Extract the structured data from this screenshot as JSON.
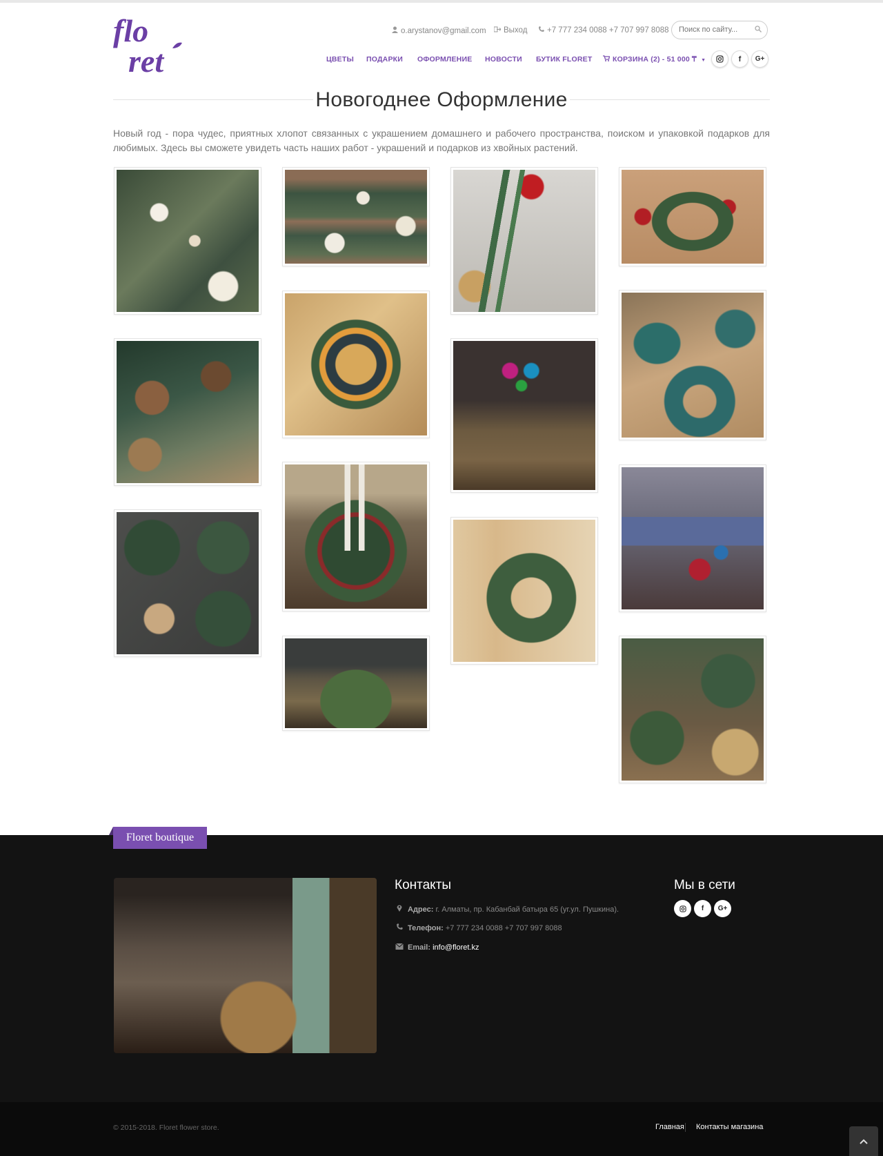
{
  "header": {
    "logo_text_1": "flo",
    "logo_text_2": "ret",
    "user_email": "o.arystanov@gmail.com",
    "logout_label": "Выход",
    "phones": "+7 777 234 0088 +7 707 997 8088",
    "search_placeholder": "Поиск по сайту..."
  },
  "nav": {
    "items": [
      "Цветы",
      "Подарки",
      "Оформление",
      "Новости",
      "Бутик Floret"
    ],
    "cart_label": "Корзина (2) - 51 000 ₸"
  },
  "social": [
    "instagram-icon",
    "facebook-icon",
    "google-plus-icon"
  ],
  "page": {
    "title": "Новогоднее Оформление",
    "intro": "Новый год - пора чудес, приятных хлопот связанных с украшением домашнего и рабочего пространства, поиском и упаковкой подарков для любимых. Здесь вы сможете увидеть часть наших работ - украшений и подарков из хвойных растений."
  },
  "footer": {
    "ribbon": "Floret boutique",
    "contacts_title": "Контакты",
    "address_label": "Адрес:",
    "address_value": "г. Алматы, пр. Кабанбай батыра 65 (уг.ул. Пушкина).",
    "phone_label": "Телефон:",
    "phone_value": "+7 777 234 0088 +7 707 997 8088",
    "email_label": "Email:",
    "email_value": "info@floret.kz",
    "social_title": "Мы в сети",
    "copyright": "© 2015-2018. Floret flower store.",
    "links": [
      "Главная",
      "Контакты магазина"
    ]
  },
  "colors": {
    "accent": "#7a4fb0",
    "footer_bg": "#131313",
    "bottom_bg": "#0b0b0b"
  }
}
